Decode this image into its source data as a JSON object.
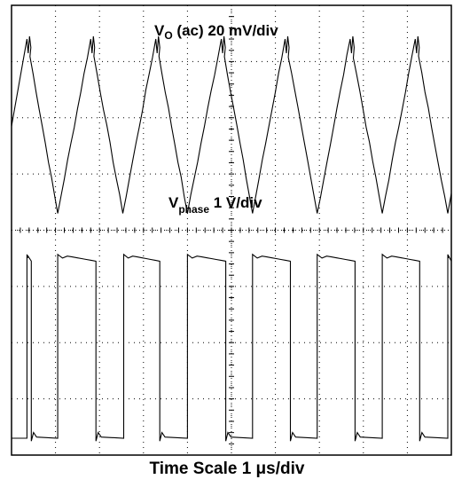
{
  "chart_data": {
    "type": "line",
    "x_axis": {
      "label": "Time Scale 1 μs/div",
      "divisions": 10,
      "units": "μs",
      "ticks_labeled": false
    },
    "y_axis": {
      "divisions": 8,
      "ticks_labeled": false
    },
    "grid": "dotted",
    "traces": [
      {
        "id": "vo",
        "label_main": "V",
        "label_sub": "O",
        "label_rest": " (ac) 20 mV/div",
        "scale": "20 mV/div",
        "shape": "triangle ripple",
        "period_us": 1.475,
        "peak_times_us": [
          0.35,
          1.8,
          3.28,
          4.77,
          6.22,
          7.7,
          9.18
        ],
        "valley_times_us": [
          1.05,
          2.53,
          4.0,
          5.48,
          6.95,
          8.43,
          9.92
        ],
        "peak_level_div": 7.4,
        "valley_level_div": 4.3
      },
      {
        "id": "vphase",
        "label_main": "V",
        "label_sub": "phase",
        "label_rest": " 1 V/div",
        "scale": "1 V/div",
        "shape": "square switching",
        "high_intervals_us": [
          [
            0.35,
            0.45
          ],
          [
            1.05,
            1.92
          ],
          [
            2.55,
            3.37
          ],
          [
            4.0,
            4.87
          ],
          [
            5.48,
            6.34
          ],
          [
            6.95,
            7.81
          ],
          [
            8.43,
            9.28
          ],
          [
            9.92,
            10.0
          ]
        ],
        "high_level_div": 3.45,
        "low_level_div": 0.3
      }
    ]
  }
}
